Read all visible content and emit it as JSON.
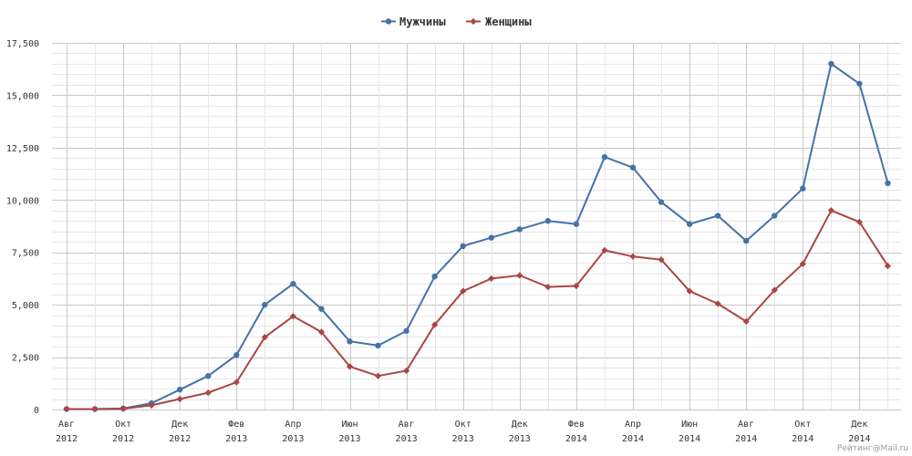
{
  "chart_data": {
    "type": "line",
    "categories": [
      "2012-08",
      "2012-09",
      "2012-10",
      "2012-11",
      "2012-12",
      "2013-01",
      "2013-02",
      "2013-03",
      "2013-04",
      "2013-05",
      "2013-06",
      "2013-07",
      "2013-08",
      "2013-09",
      "2013-10",
      "2013-11",
      "2013-12",
      "2014-01",
      "2014-02",
      "2014-03",
      "2014-04",
      "2014-05",
      "2014-06",
      "2014-07",
      "2014-08",
      "2014-09",
      "2014-10",
      "2014-11",
      "2014-12",
      "2015-01"
    ],
    "x_tick_labels": [
      {
        "month": "Авг",
        "year": "2012"
      },
      {
        "month": "Окт",
        "year": "2012"
      },
      {
        "month": "Дек",
        "year": "2012"
      },
      {
        "month": "Фев",
        "year": "2013"
      },
      {
        "month": "Апр",
        "year": "2013"
      },
      {
        "month": "Июн",
        "year": "2013"
      },
      {
        "month": "Авг",
        "year": "2013"
      },
      {
        "month": "Окт",
        "year": "2013"
      },
      {
        "month": "Дек",
        "year": "2013"
      },
      {
        "month": "Фев",
        "year": "2014"
      },
      {
        "month": "Апр",
        "year": "2014"
      },
      {
        "month": "Июн",
        "year": "2014"
      },
      {
        "month": "Авг",
        "year": "2014"
      },
      {
        "month": "Окт",
        "year": "2014"
      },
      {
        "month": "Дек",
        "year": "2014"
      }
    ],
    "series": [
      {
        "name": "Мужчины",
        "color": "#4572a7",
        "marker": "circle",
        "values": [
          20,
          20,
          50,
          300,
          950,
          1600,
          2600,
          5000,
          6000,
          4800,
          3250,
          3050,
          3750,
          6350,
          7800,
          8200,
          8600,
          9000,
          8850,
          12050,
          11550,
          9900,
          8850,
          9250,
          8050,
          9250,
          10550,
          16500,
          15550,
          10800
        ]
      },
      {
        "name": "Женщины",
        "color": "#aa4643",
        "marker": "diamond",
        "values": [
          20,
          20,
          30,
          200,
          500,
          800,
          1300,
          3450,
          4450,
          3700,
          2050,
          1600,
          1850,
          4050,
          5650,
          6250,
          6400,
          5850,
          5900,
          7600,
          7300,
          7150,
          5650,
          5050,
          4200,
          5700,
          6950,
          9500,
          8950,
          6850
        ]
      }
    ],
    "y_ticks": [
      "0",
      "2,500",
      "5,000",
      "7,500",
      "10,000",
      "12,500",
      "15,000",
      "17,500"
    ],
    "ylim": [
      0,
      17500
    ],
    "minor_grid_step": 500,
    "grid": true,
    "legend_position": "top-center",
    "title": "",
    "xlabel": "",
    "ylabel": ""
  },
  "credit": "Рейтинг@Mail.ru"
}
